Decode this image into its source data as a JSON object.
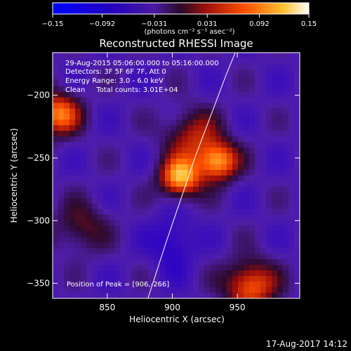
{
  "chart_data": {
    "type": "heatmap",
    "title": "Reconstructed RHESSI Image",
    "xlabel": "Heliocentric X (arcsec)",
    "ylabel": "Heliocentric Y (arcsec)",
    "xlim": [
      808,
      998
    ],
    "ylim": [
      -362,
      -166
    ],
    "x_ticks": [
      850,
      900,
      950
    ],
    "y_ticks": [
      -200,
      -250,
      -300,
      -350
    ],
    "x_tick_labels": [
      "850",
      "900",
      "950"
    ],
    "y_tick_labels": [
      "−200",
      "−250",
      "−300",
      "−350"
    ],
    "colorbar": {
      "range": [
        -0.15,
        0.15
      ],
      "ticks": [
        -0.15,
        -0.092,
        -0.031,
        0.031,
        0.092,
        0.15
      ],
      "tick_labels": [
        "−0.15",
        "−0.092",
        "−0.031",
        "0.031",
        "0.092",
        "0.15"
      ],
      "unit_label": "(photons cm⁻² s⁻¹ asec⁻²)"
    },
    "annotations": [
      "29-Aug-2015 05:06:00.000 to 05:16:00.000",
      "Detectors: 3F 5F 6F 7F, Att 0",
      "Energy Range: 3.0 - 6.0 keV",
      "Clean     Total counts: 3.01E+04"
    ],
    "peak_label": "Position of Peak = [906,-266]",
    "peak": [
      906,
      -266
    ],
    "sources": [
      {
        "x": 906,
        "y": -266,
        "peak": 0.15,
        "width": 11
      },
      {
        "x": 935,
        "y": -253,
        "peak": 0.14,
        "width": 11
      },
      {
        "x": 916,
        "y": -233,
        "peak": 0.08,
        "width": 15
      },
      {
        "x": 812,
        "y": -215,
        "peak": 0.13,
        "width": 12
      },
      {
        "x": 960,
        "y": -352,
        "peak": 0.12,
        "width": 14
      },
      {
        "x": 830,
        "y": -305,
        "peak": 0.06,
        "width": 14
      }
    ],
    "limb_curve": [
      [
        880,
        -366
      ],
      [
        895,
        -318
      ],
      [
        918,
        -248
      ],
      [
        942,
        -182
      ],
      [
        950,
        -162
      ]
    ]
  },
  "footer": {
    "timestamp": "17-Aug-2017 14:12"
  }
}
